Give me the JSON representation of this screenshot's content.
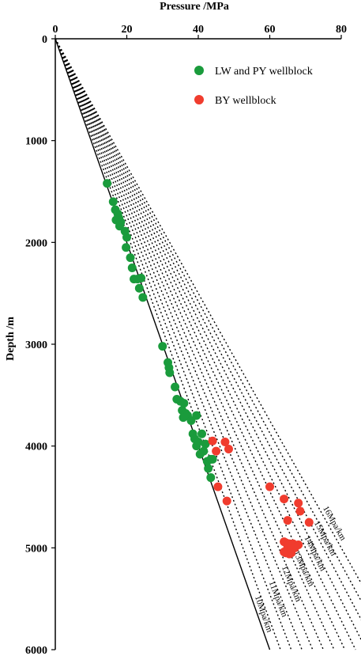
{
  "chart_data": {
    "type": "scatter",
    "xlabel": "Pressure /MPa",
    "ylabel": "Depth /m",
    "xlim": [
      0,
      80
    ],
    "ylim": [
      0,
      6000
    ],
    "x_ticks": [
      0,
      20,
      40,
      60,
      80
    ],
    "y_ticks": [
      0,
      1000,
      2000,
      3000,
      4000,
      5000,
      6000
    ],
    "y_inverted": true,
    "x_axis_position": "top",
    "grid": false,
    "legend_position": "top-right",
    "gradient_lines": [
      {
        "gradient": 10,
        "label": "10Mpa/km",
        "style": "solid"
      },
      {
        "gradient": 11,
        "label": "11Mpa/km",
        "style": "dotted"
      },
      {
        "gradient": 12,
        "label": "12Mpa/km",
        "style": "dotted"
      },
      {
        "gradient": 13,
        "label": "13Mpa/km",
        "style": "dotted"
      },
      {
        "gradient": 14,
        "label": "14Mpa/km",
        "style": "dotted"
      },
      {
        "gradient": 15,
        "label": "15Mpa/km",
        "style": "dotted"
      },
      {
        "gradient": 16,
        "label": "16Mpa/km",
        "style": "dotted"
      }
    ],
    "extra_dotted_gradients": [
      10.5,
      11.5,
      12.5,
      13.5,
      14.5,
      15.5
    ],
    "series": [
      {
        "name": "LW and PY wellblock",
        "color": "#1a9b3c",
        "points": [
          [
            14.5,
            1420
          ],
          [
            16.2,
            1600
          ],
          [
            16.8,
            1680
          ],
          [
            17.5,
            1720
          ],
          [
            17.8,
            1760
          ],
          [
            17.0,
            1780
          ],
          [
            18.3,
            1800
          ],
          [
            18.0,
            1840
          ],
          [
            19.5,
            1890
          ],
          [
            20.0,
            1950
          ],
          [
            19.8,
            2050
          ],
          [
            21.0,
            2150
          ],
          [
            21.5,
            2250
          ],
          [
            22.0,
            2360
          ],
          [
            23.0,
            2360
          ],
          [
            24.0,
            2350
          ],
          [
            23.5,
            2450
          ],
          [
            24.5,
            2540
          ],
          [
            30.0,
            3020
          ],
          [
            31.5,
            3180
          ],
          [
            31.8,
            3230
          ],
          [
            32.0,
            3280
          ],
          [
            33.5,
            3420
          ],
          [
            34.0,
            3540
          ],
          [
            35.0,
            3560
          ],
          [
            36.0,
            3580
          ],
          [
            35.5,
            3650
          ],
          [
            36.5,
            3680
          ],
          [
            35.8,
            3720
          ],
          [
            37.0,
            3700
          ],
          [
            38.0,
            3750
          ],
          [
            39.5,
            3700
          ],
          [
            38.5,
            3880
          ],
          [
            39.0,
            3930
          ],
          [
            40.0,
            3960
          ],
          [
            39.5,
            4000
          ],
          [
            41.0,
            3880
          ],
          [
            41.5,
            4050
          ],
          [
            42.0,
            3980
          ],
          [
            40.5,
            4080
          ],
          [
            42.5,
            4150
          ],
          [
            43.5,
            4130
          ],
          [
            44.0,
            4130
          ],
          [
            42.8,
            4220
          ],
          [
            43.5,
            4310
          ]
        ]
      },
      {
        "name": "BY wellblock",
        "color": "#f03c2e",
        "points": [
          [
            44.0,
            3950
          ],
          [
            47.5,
            3960
          ],
          [
            48.5,
            4030
          ],
          [
            45.0,
            4050
          ],
          [
            45.5,
            4400
          ],
          [
            60.0,
            4400
          ],
          [
            48.0,
            4540
          ],
          [
            64.0,
            4520
          ],
          [
            68.0,
            4560
          ],
          [
            68.5,
            4640
          ],
          [
            65.0,
            4730
          ],
          [
            71.0,
            4750
          ],
          [
            64.0,
            4940
          ],
          [
            64.5,
            4950
          ],
          [
            65.5,
            4960
          ],
          [
            66.5,
            4960
          ],
          [
            68.0,
            4970
          ],
          [
            65.0,
            5000
          ],
          [
            66.0,
            5010
          ],
          [
            67.0,
            5000
          ],
          [
            64.0,
            5040
          ],
          [
            64.5,
            5050
          ],
          [
            65.5,
            5060
          ],
          [
            66.0,
            5050
          ]
        ]
      }
    ]
  }
}
